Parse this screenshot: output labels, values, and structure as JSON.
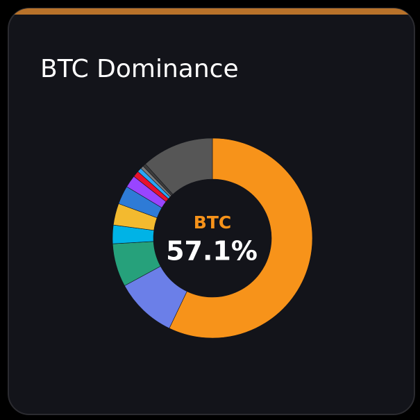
{
  "chart_data": {
    "type": "pie",
    "title": "BTC Dominance",
    "center_title": "BTC",
    "values": [
      57.1,
      10,
      7,
      3,
      3.5,
      3,
      2,
      1,
      0.7,
      0.5,
      0.5,
      11.7
    ],
    "value_labels": [
      "57.1%",
      null,
      null,
      null,
      null,
      null,
      null,
      null,
      null,
      null,
      null,
      null
    ],
    "colors": [
      "#f7931a",
      "#6b7fe8",
      "#26a17b",
      "#00b3e6",
      "#f3ba2f",
      "#2e7bd6",
      "#9945ff",
      "#e8112d",
      "#2aa6f5",
      "#7a7a7a",
      "#3c3c3c",
      "#565656"
    ],
    "donut": true
  }
}
